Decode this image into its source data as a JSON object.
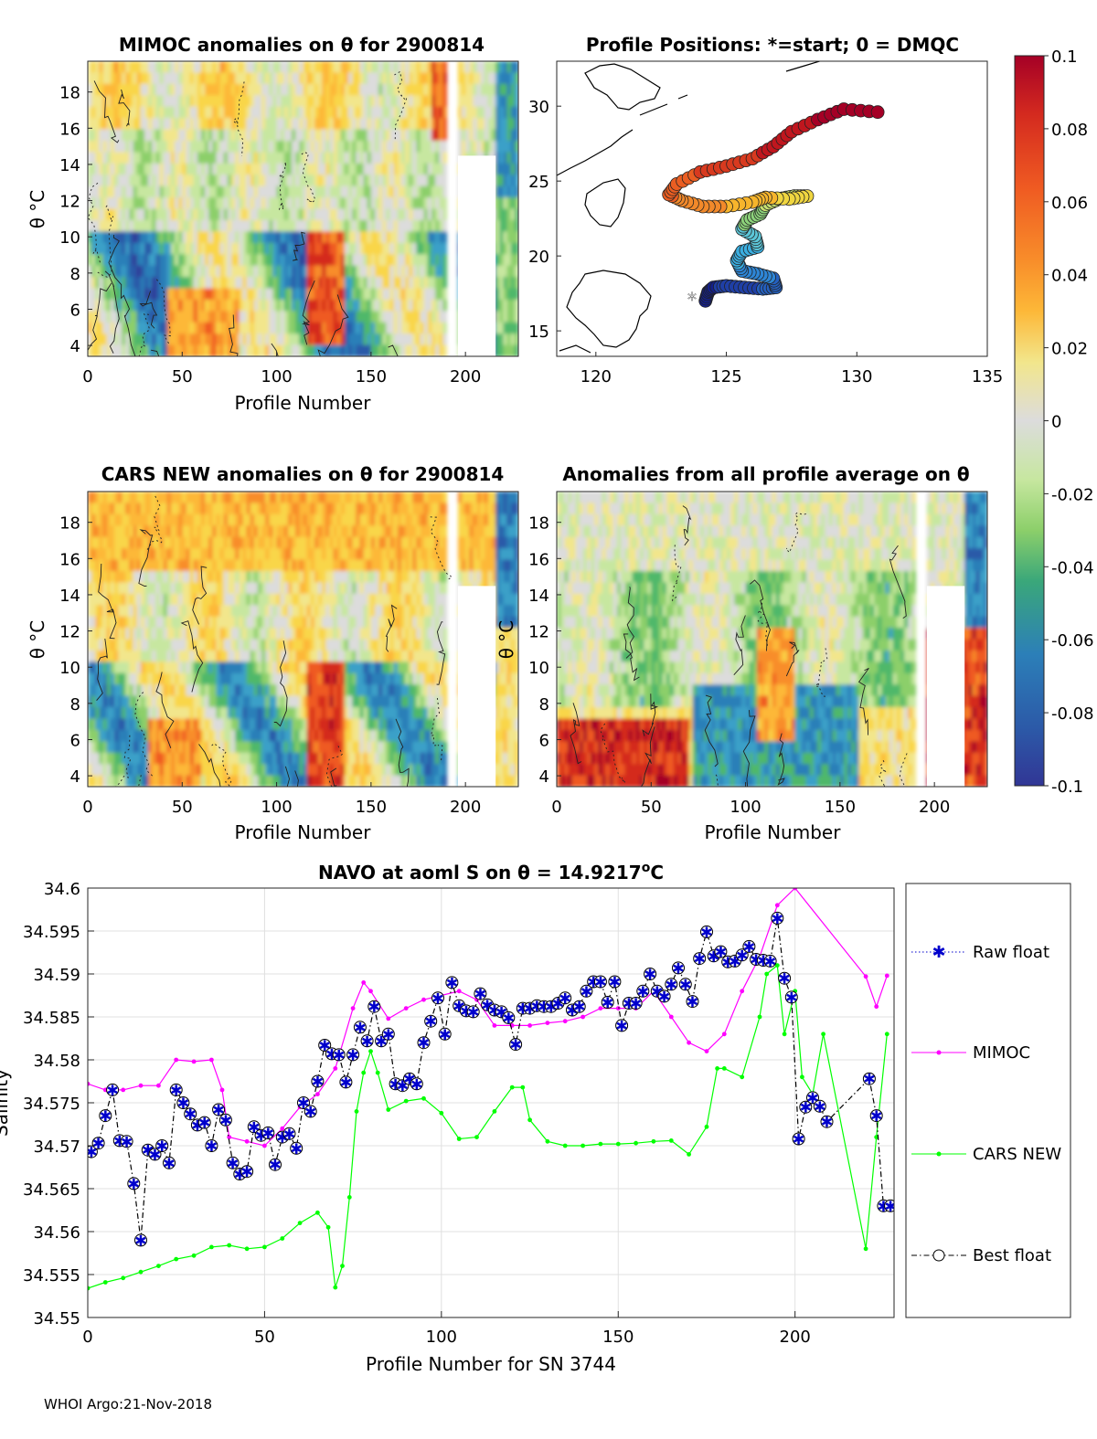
{
  "footer": "WHOI Argo:21-Nov-2018",
  "colors": {
    "mimoc": "#ff00ff",
    "cars": "#00ff00",
    "raw": "#0000cc",
    "best": "#000000",
    "grid": "#e0e0e0",
    "colormap": [
      "#313695",
      "#2c5aa8",
      "#2c7fb8",
      "#3aa0c8",
      "#4fb86a",
      "#8ccf6a",
      "#c7e7a0",
      "#dcdcdc",
      "#f2e68c",
      "#f9d648",
      "#fdb838",
      "#f88d2a",
      "#ef5a22",
      "#d42a1f",
      "#a50026"
    ]
  },
  "panels": {
    "mimoc": {
      "title": "MIMOC anomalies on θ  for 2900814",
      "ylabel": "θ °C",
      "xlabel": "Profile Number",
      "xticks": [
        "0",
        "50",
        "100",
        "150",
        "200"
      ],
      "yticks": [
        "4",
        "6",
        "8",
        "10",
        "12",
        "14",
        "16",
        "18"
      ]
    },
    "positions": {
      "title": "Profile Positions: *=start; 0 = DMQC",
      "xticks": [
        "120",
        "125",
        "130",
        "135"
      ],
      "yticks": [
        "15",
        "20",
        "25",
        "30"
      ],
      "start_marker": "*"
    },
    "cars": {
      "title": "CARS NEW anomalies on θ for 2900814",
      "ylabel": "θ °C",
      "xlabel": "Profile Number",
      "xticks": [
        "0",
        "50",
        "100",
        "150",
        "200"
      ],
      "yticks": [
        "4",
        "6",
        "8",
        "10",
        "12",
        "14",
        "16",
        "18"
      ]
    },
    "avg": {
      "title": "Anomalies from all profile average on θ",
      "ylabel": "θ °C",
      "xlabel": "Profile Number",
      "xticks": [
        "0",
        "50",
        "100",
        "150",
        "200"
      ],
      "yticks": [
        "4",
        "6",
        "8",
        "10",
        "12",
        "14",
        "16",
        "18"
      ]
    },
    "colorbar": {
      "ticks": [
        "0.1",
        "0.08",
        "0.06",
        "0.04",
        "0.02",
        "0",
        "-0.02",
        "-0.04",
        "-0.06",
        "-0.08",
        "-0.1"
      ]
    }
  },
  "chart_data": [
    {
      "type": "heatmap",
      "title": "MIMOC anomalies on θ  for 2900814",
      "xlabel": "Profile Number",
      "ylabel": "θ °C",
      "xlim": [
        0,
        228
      ],
      "ylim": [
        3.4,
        19.7
      ],
      "clim": [
        -0.1,
        0.1
      ]
    },
    {
      "type": "scatter",
      "title": "Profile Positions: *=start; 0 = DMQC",
      "xlim": [
        118.5,
        135
      ],
      "ylim": [
        13.3,
        33
      ],
      "track": [
        [
          124.2,
          17.0
        ],
        [
          124.3,
          17.6
        ],
        [
          124.5,
          17.9
        ],
        [
          125.0,
          18.0
        ],
        [
          125.7,
          17.9
        ],
        [
          126.4,
          17.8
        ],
        [
          126.9,
          17.9
        ],
        [
          126.8,
          18.5
        ],
        [
          126.2,
          18.8
        ],
        [
          125.6,
          19.0
        ],
        [
          125.4,
          19.7
        ],
        [
          125.6,
          20.3
        ],
        [
          126.2,
          20.6
        ],
        [
          126.1,
          21.3
        ],
        [
          125.6,
          21.8
        ],
        [
          125.8,
          22.4
        ],
        [
          126.3,
          22.8
        ],
        [
          126.5,
          23.4
        ],
        [
          127.0,
          23.8
        ],
        [
          127.6,
          24.0
        ],
        [
          128.1,
          24.0
        ],
        [
          127.4,
          23.8
        ],
        [
          126.5,
          23.9
        ],
        [
          126.0,
          23.6
        ],
        [
          125.0,
          23.3
        ],
        [
          124.1,
          23.3
        ],
        [
          123.3,
          23.7
        ],
        [
          122.8,
          24.1
        ],
        [
          123.1,
          24.8
        ],
        [
          124.0,
          25.6
        ],
        [
          125.0,
          26.0
        ],
        [
          126.0,
          26.5
        ],
        [
          126.8,
          27.3
        ],
        [
          127.5,
          28.3
        ],
        [
          128.5,
          29.1
        ],
        [
          129.5,
          29.8
        ],
        [
          130.8,
          29.6
        ]
      ]
    },
    {
      "type": "heatmap",
      "title": "CARS NEW anomalies on θ for 2900814",
      "xlabel": "Profile Number",
      "ylabel": "θ °C",
      "xlim": [
        0,
        228
      ],
      "ylim": [
        3.4,
        19.7
      ],
      "clim": [
        -0.1,
        0.1
      ]
    },
    {
      "type": "heatmap",
      "title": "Anomalies from all profile average on θ",
      "xlabel": "Profile Number",
      "ylabel": "θ °C",
      "xlim": [
        0,
        228
      ],
      "ylim": [
        3.4,
        19.7
      ],
      "clim": [
        -0.1,
        0.1
      ]
    },
    {
      "type": "line",
      "title": "NAVO at aoml S on θ = 14.9217",
      "title_superscript": "o",
      "title_unit": "C",
      "xlabel": "Profile Number for SN 3744",
      "ylabel": "Salinity",
      "xlim": [
        0,
        228
      ],
      "ylim": [
        34.55,
        34.6
      ],
      "xticks": [
        "0",
        "50",
        "100",
        "150",
        "200"
      ],
      "yticks": [
        "34.6",
        "34.595",
        "34.59",
        "34.585",
        "34.58",
        "34.575",
        "34.57",
        "34.565",
        "34.56",
        "34.555",
        "34.55"
      ],
      "legend": [
        "Raw float",
        "MIMOC",
        "CARS NEW",
        "Best float"
      ],
      "series": [
        {
          "name": "MIMOC",
          "x": [
            0,
            5,
            10,
            15,
            20,
            25,
            30,
            35,
            38,
            40,
            45,
            50,
            55,
            60,
            65,
            70,
            75,
            78,
            80,
            85,
            90,
            95,
            100,
            105,
            110,
            115,
            120,
            125,
            130,
            135,
            140,
            145,
            150,
            155,
            160,
            165,
            170,
            175,
            180,
            185,
            190,
            195,
            200,
            220,
            223,
            226
          ],
          "y": [
            34.5772,
            34.5765,
            34.5765,
            34.577,
            34.577,
            34.58,
            34.5798,
            34.58,
            34.5765,
            34.571,
            34.5705,
            34.57,
            34.572,
            34.5745,
            34.576,
            34.579,
            34.586,
            34.589,
            34.588,
            34.5848,
            34.586,
            34.587,
            34.5875,
            34.588,
            34.587,
            34.584,
            34.584,
            34.584,
            34.5843,
            34.5845,
            34.585,
            34.586,
            34.586,
            34.586,
            34.588,
            34.585,
            34.582,
            34.581,
            34.583,
            34.588,
            34.592,
            34.598,
            34.6,
            34.5897,
            34.5862,
            34.5898
          ]
        },
        {
          "name": "CARS NEW",
          "x": [
            0,
            5,
            10,
            15,
            20,
            25,
            30,
            35,
            40,
            45,
            50,
            55,
            60,
            65,
            68,
            70,
            72,
            74,
            76,
            78,
            80,
            82,
            85,
            90,
            95,
            100,
            105,
            110,
            115,
            120,
            123,
            125,
            130,
            135,
            140,
            145,
            150,
            155,
            160,
            165,
            170,
            175,
            178,
            180,
            185,
            190,
            192,
            195,
            197,
            200,
            202,
            205,
            208,
            220,
            223,
            226
          ],
          "y": [
            34.5534,
            34.5541,
            34.5546,
            34.5553,
            34.556,
            34.5568,
            34.5572,
            34.5582,
            34.5584,
            34.558,
            34.5582,
            34.5592,
            34.561,
            34.5622,
            34.5605,
            34.5535,
            34.556,
            34.564,
            34.574,
            34.5785,
            34.581,
            34.5785,
            34.5742,
            34.5752,
            34.5755,
            34.5738,
            34.5708,
            34.571,
            34.574,
            34.5768,
            34.5768,
            34.573,
            34.5705,
            34.57,
            34.57,
            34.5702,
            34.5702,
            34.5703,
            34.5705,
            34.5706,
            34.569,
            34.5722,
            34.579,
            34.579,
            34.578,
            34.585,
            34.59,
            34.591,
            34.583,
            34.588,
            34.578,
            34.576,
            34.583,
            34.558,
            34.571,
            34.583
          ]
        },
        {
          "name": "Best float",
          "x": [
            1,
            3,
            5,
            7,
            9,
            11,
            13,
            15,
            17,
            19,
            21,
            23,
            25,
            27,
            29,
            31,
            33,
            35,
            37,
            39,
            41,
            43,
            45,
            47,
            49,
            51,
            53,
            55,
            57,
            59,
            61,
            63,
            65,
            67,
            69,
            71,
            73,
            75,
            77,
            79,
            81,
            83,
            85,
            87,
            89,
            91,
            93,
            95,
            97,
            99,
            101,
            103,
            105,
            107,
            109,
            111,
            113,
            115,
            117,
            119,
            121,
            123,
            125,
            127,
            129,
            131,
            133,
            135,
            137,
            139,
            141,
            143,
            145,
            147,
            149,
            151,
            153,
            155,
            157,
            159,
            161,
            163,
            165,
            167,
            169,
            171,
            173,
            175,
            177,
            179,
            181,
            183,
            185,
            187,
            189,
            191,
            193,
            195,
            197,
            199,
            201,
            203,
            205,
            207,
            209,
            221,
            223,
            225,
            227
          ],
          "y": [
            34.5693,
            34.5703,
            34.5735,
            34.5765,
            34.5706,
            34.5705,
            34.5656,
            34.559,
            34.5695,
            34.569,
            34.57,
            34.568,
            34.5765,
            34.575,
            34.5737,
            34.5724,
            34.5727,
            34.57,
            34.5742,
            34.573,
            34.568,
            34.5667,
            34.567,
            34.5722,
            34.5712,
            34.5715,
            34.5678,
            34.571,
            34.5714,
            34.5697,
            34.575,
            34.574,
            34.5775,
            34.5817,
            34.5807,
            34.5806,
            34.5774,
            34.5806,
            34.5838,
            34.5822,
            34.5862,
            34.5822,
            34.583,
            34.5772,
            34.577,
            34.5778,
            34.5772,
            34.582,
            34.5845,
            34.5872,
            34.583,
            34.589,
            34.5863,
            34.5857,
            34.5856,
            34.5877,
            34.5864,
            34.5858,
            34.5856,
            34.5849,
            34.5818,
            34.586,
            34.586,
            34.5863,
            34.5862,
            34.5862,
            34.5866,
            34.5872,
            34.5858,
            34.5862,
            34.588,
            34.5891,
            34.5891,
            34.5867,
            34.5891,
            34.584,
            34.5866,
            34.5866,
            34.588,
            34.59,
            34.588,
            34.5874,
            34.5888,
            34.5907,
            34.5888,
            34.5868,
            34.5918,
            34.5949,
            34.5921,
            34.5926,
            34.5914,
            34.5915,
            34.5922,
            34.5932,
            34.5917,
            34.5916,
            34.5915,
            34.5965,
            34.5895,
            34.5873,
            34.5708,
            34.5745,
            34.5756,
            34.5746,
            34.5728,
            34.5778,
            34.5735,
            34.563,
            34.563
          ]
        },
        {
          "name": "Raw float",
          "note": "coincides with Best float"
        }
      ]
    }
  ]
}
